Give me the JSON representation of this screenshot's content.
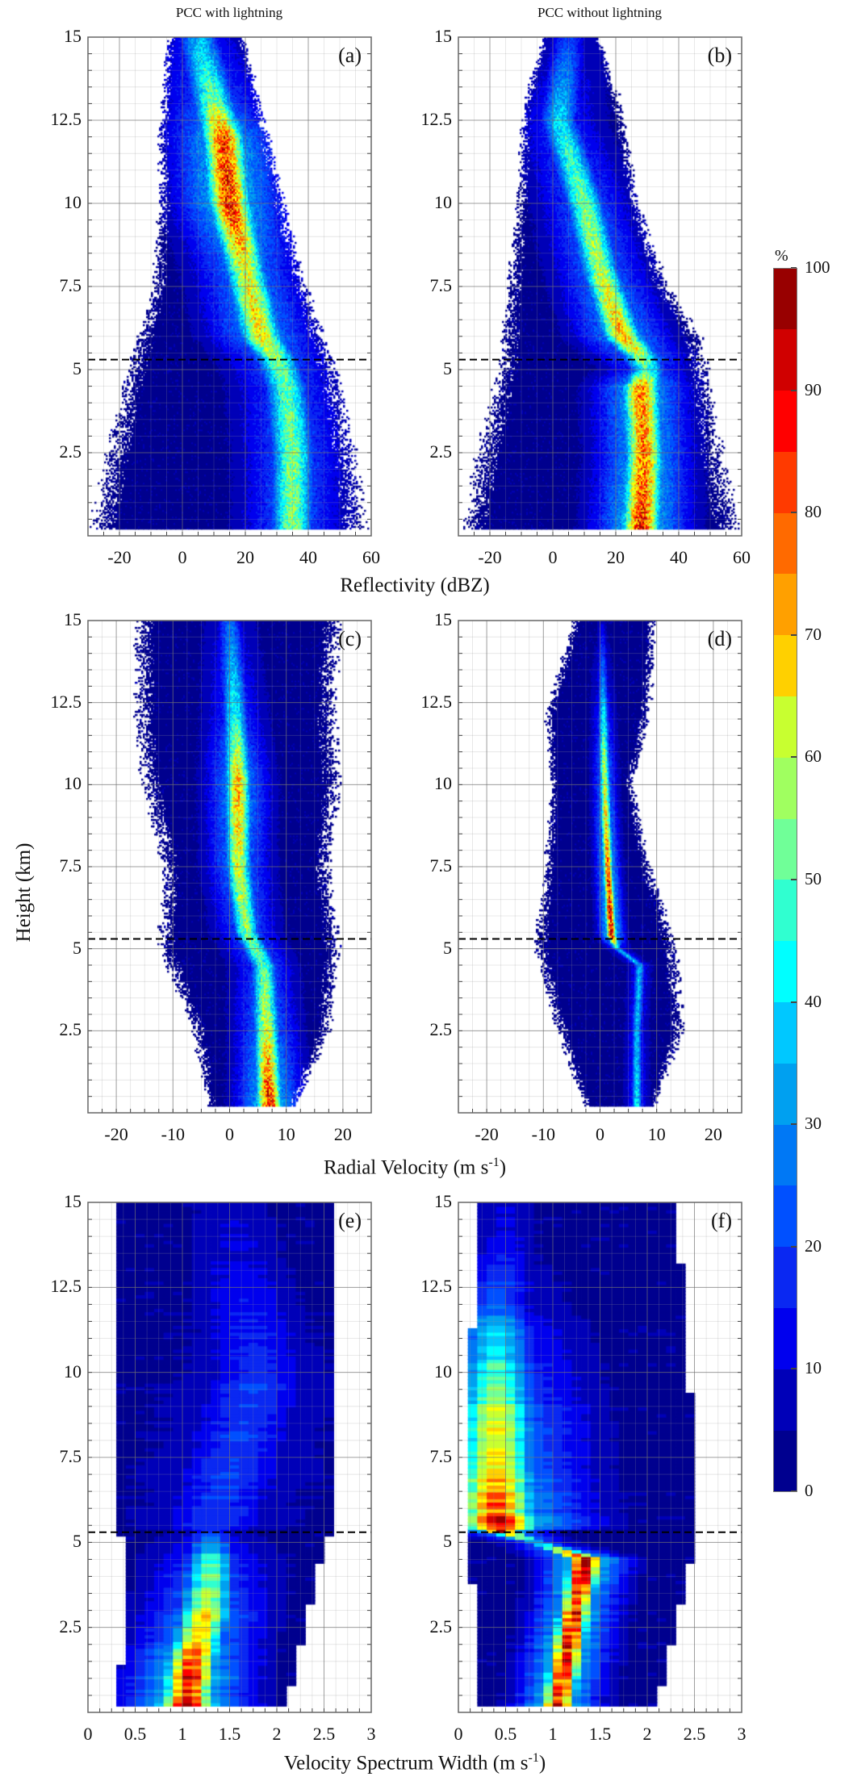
{
  "figure": {
    "column_titles": [
      "PCC with lightning",
      "PCC without lightning"
    ],
    "ylabel": "Height (km)",
    "xlabels": {
      "reflectivity": "Reflectivity (dBZ)",
      "radial_velocity": "Radial Velocity (m s",
      "radial_velocity_sup": "-1",
      "radial_velocity_end": ")",
      "spectrum_width": "Velocity Spectrum Width (m s",
      "spectrum_width_sup": "-1",
      "spectrum_width_end": ")"
    }
  },
  "colorbar": {
    "unit": "%",
    "range": [
      0,
      100
    ],
    "ticks": [
      "0",
      "10",
      "20",
      "30",
      "40",
      "50",
      "60",
      "70",
      "80",
      "90",
      "100"
    ],
    "levels": 20,
    "colors": [
      "#00008f",
      "#0000b8",
      "#0000ee",
      "#0a28f2",
      "#0050ff",
      "#0078f5",
      "#00a0f0",
      "#00c8ff",
      "#00ffff",
      "#30ffd0",
      "#70ff98",
      "#a0ff60",
      "#c8ff30",
      "#ffff00",
      "#ffd000",
      "#ffa000",
      "#ff6a00",
      "#ff3a00",
      "#ff0000",
      "#d00000",
      "#980000"
    ]
  },
  "chart_data": [
    {
      "id": "a",
      "panel_label": "(a)",
      "type": "heatmap",
      "column": "PCC with lightning",
      "variable": "reflectivity",
      "xlim": [
        -30,
        60
      ],
      "ylim": [
        0,
        15
      ],
      "xticks": [
        "-20",
        "0",
        "20",
        "40",
        "60"
      ],
      "xtick_values": [
        -20,
        0,
        20,
        40,
        60
      ],
      "yticks": [
        "2.5",
        "5",
        "7.5",
        "10",
        "12.5",
        "15"
      ],
      "ytick_values": [
        2.5,
        5,
        7.5,
        10,
        12.5,
        15
      ],
      "melting_layer_height_km": 5.3,
      "mode_profile": [
        [
          15,
          5,
          35
        ],
        [
          13,
          10,
          55
        ],
        [
          12,
          13,
          85
        ],
        [
          10,
          15,
          90
        ],
        [
          8,
          20,
          65
        ],
        [
          6,
          25,
          70
        ],
        [
          5.3,
          30,
          55
        ],
        [
          4.5,
          33,
          50
        ],
        [
          2.5,
          35,
          55
        ],
        [
          0.2,
          35,
          55
        ]
      ],
      "mode_sigma": 4.5,
      "envelope": [
        [
          15,
          -5,
          20
        ],
        [
          12,
          -8,
          28
        ],
        [
          10,
          -8,
          33
        ],
        [
          7.5,
          -10,
          40
        ],
        [
          6,
          -15,
          46
        ],
        [
          5,
          -18,
          50
        ],
        [
          2.5,
          -25,
          56
        ],
        [
          0.2,
          -30,
          60
        ]
      ]
    },
    {
      "id": "b",
      "panel_label": "(b)",
      "type": "heatmap",
      "column": "PCC without lightning",
      "variable": "reflectivity",
      "xlim": [
        -30,
        60
      ],
      "ylim": [
        0,
        15
      ],
      "xticks": [
        "-20",
        "0",
        "20",
        "40",
        "60"
      ],
      "xtick_values": [
        -20,
        0,
        20,
        40,
        60
      ],
      "yticks": [
        "2.5",
        "5",
        "7.5",
        "10",
        "12.5",
        "15"
      ],
      "ytick_values": [
        2.5,
        5,
        7.5,
        10,
        12.5,
        15
      ],
      "melting_layer_height_km": 5.3,
      "mode_profile": [
        [
          15,
          5,
          20
        ],
        [
          12.5,
          2,
          40
        ],
        [
          10,
          10,
          55
        ],
        [
          8,
          15,
          60
        ],
        [
          6,
          22,
          75
        ],
        [
          5.4,
          28,
          60
        ],
        [
          5,
          30,
          45
        ],
        [
          4.5,
          28,
          80
        ],
        [
          2.5,
          29,
          80
        ],
        [
          0.2,
          28,
          92
        ]
      ],
      "mode_sigma": 4,
      "envelope": [
        [
          15,
          -3,
          15
        ],
        [
          13,
          -10,
          22
        ],
        [
          10,
          -12,
          28
        ],
        [
          7.5,
          -15,
          37
        ],
        [
          6,
          -17,
          48
        ],
        [
          5,
          -18,
          50
        ],
        [
          2.5,
          -25,
          55
        ],
        [
          0.2,
          -30,
          60
        ]
      ]
    },
    {
      "id": "c",
      "panel_label": "(c)",
      "type": "heatmap",
      "column": "PCC with lightning",
      "variable": "radial_velocity",
      "xlim": [
        -25,
        25
      ],
      "ylim": [
        0,
        15
      ],
      "xticks": [
        "-20",
        "-10",
        "0",
        "10",
        "20"
      ],
      "xtick_values": [
        -20,
        -10,
        0,
        10,
        20
      ],
      "yticks": [
        "2.5",
        "5",
        "7.5",
        "10",
        "12.5",
        "15"
      ],
      "ytick_values": [
        2.5,
        5,
        7.5,
        10,
        12.5,
        15
      ],
      "melting_layer_height_km": 5.3,
      "mode_profile": [
        [
          15,
          0,
          25
        ],
        [
          12,
          1,
          45
        ],
        [
          10,
          1.5,
          75
        ],
        [
          7.5,
          1.5,
          65
        ],
        [
          5.5,
          3,
          55
        ],
        [
          4.5,
          6,
          50
        ],
        [
          2.5,
          6.5,
          65
        ],
        [
          0.2,
          7,
          92
        ]
      ],
      "mode_sigma": 1.5,
      "envelope": [
        [
          15,
          -17,
          20
        ],
        [
          12,
          -17,
          19
        ],
        [
          10,
          -16,
          20
        ],
        [
          7.5,
          -12,
          18
        ],
        [
          5,
          -13,
          20
        ],
        [
          2.5,
          -7,
          18
        ],
        [
          0.2,
          -4,
          12
        ]
      ]
    },
    {
      "id": "d",
      "panel_label": "(d)",
      "type": "heatmap",
      "column": "PCC without lightning",
      "variable": "radial_velocity",
      "xlim": [
        -25,
        25
      ],
      "ylim": [
        0,
        15
      ],
      "xticks": [
        "-20",
        "-10",
        "0",
        "10",
        "20"
      ],
      "xtick_values": [
        -20,
        -10,
        0,
        10,
        20
      ],
      "yticks": [
        "2.5",
        "5",
        "7.5",
        "10",
        "12.5",
        "15"
      ],
      "ytick_values": [
        2.5,
        5,
        7.5,
        10,
        12.5,
        15
      ],
      "melting_layer_height_km": 5.3,
      "mode_profile": [
        [
          15,
          0.3,
          10
        ],
        [
          13,
          0.5,
          30
        ],
        [
          11,
          0.7,
          55
        ],
        [
          9,
          1,
          70
        ],
        [
          7,
          1.5,
          85
        ],
        [
          5.4,
          2,
          95
        ],
        [
          5,
          3,
          35
        ],
        [
          4.5,
          7,
          35
        ],
        [
          2.5,
          6.5,
          35
        ],
        [
          0.2,
          6.5,
          42
        ]
      ],
      "mode_sigma": 0.6,
      "envelope": [
        [
          15,
          -5,
          10
        ],
        [
          12,
          -10,
          9
        ],
        [
          10,
          -9,
          6
        ],
        [
          7.5,
          -10,
          9
        ],
        [
          5,
          -12,
          14
        ],
        [
          2.5,
          -8,
          15
        ],
        [
          0.2,
          -3,
          10
        ]
      ]
    },
    {
      "id": "e",
      "panel_label": "(e)",
      "type": "heatmap",
      "column": "PCC with lightning",
      "variable": "spectrum_width",
      "xlim": [
        0,
        3
      ],
      "ylim": [
        0,
        15
      ],
      "xticks": [
        "0",
        "0.5",
        "1",
        "1.5",
        "2",
        "2.5",
        "3"
      ],
      "xtick_values": [
        0,
        0.5,
        1,
        1.5,
        2,
        2.5,
        3
      ],
      "yticks": [
        "2.5",
        "5",
        "7.5",
        "10",
        "12.5",
        "15"
      ],
      "ytick_values": [
        2.5,
        5,
        7.5,
        10,
        12.5,
        15
      ],
      "melting_layer_height_km": 5.3,
      "mode_profile": [
        [
          15,
          1.5,
          8
        ],
        [
          10,
          1.8,
          18
        ],
        [
          7,
          1.5,
          20
        ],
        [
          5.3,
          1.3,
          18
        ],
        [
          4.5,
          1.3,
          45
        ],
        [
          3,
          1.25,
          65
        ],
        [
          1.5,
          1.1,
          85
        ],
        [
          0.2,
          1.05,
          100
        ]
      ],
      "mode_sigma": 0.18,
      "envelope": [
        [
          15,
          0.3,
          2.6
        ],
        [
          5.2,
          0.3,
          2.6
        ],
        [
          5,
          0.4,
          2.5
        ],
        [
          2.5,
          0.4,
          2.3
        ],
        [
          0.2,
          0.3,
          2.1
        ]
      ]
    },
    {
      "id": "f",
      "panel_label": "(f)",
      "type": "heatmap",
      "column": "PCC without lightning",
      "variable": "spectrum_width",
      "xlim": [
        0,
        3
      ],
      "ylim": [
        0,
        15
      ],
      "xticks": [
        "0",
        "0.5",
        "1",
        "1.5",
        "2",
        "2.5",
        "3"
      ],
      "xtick_values": [
        0,
        0.5,
        1,
        1.5,
        2,
        2.5,
        3
      ],
      "yticks": [
        "2.5",
        "5",
        "7.5",
        "10",
        "12.5",
        "15"
      ],
      "ytick_values": [
        2.5,
        5,
        7.5,
        10,
        12.5,
        15
      ],
      "melting_layer_height_km": 5.3,
      "mode_profile": [
        [
          14,
          0.5,
          10
        ],
        [
          12,
          0.4,
          25
        ],
        [
          10,
          0.4,
          50
        ],
        [
          8,
          0.4,
          70
        ],
        [
          6,
          0.4,
          85
        ],
        [
          5.3,
          0.45,
          100
        ],
        [
          5,
          0.8,
          40
        ],
        [
          4.5,
          1.35,
          95
        ],
        [
          2.5,
          1.2,
          90
        ],
        [
          0.2,
          1.05,
          90
        ]
      ],
      "mode_sigma": 0.12,
      "envelope": [
        [
          15,
          0.2,
          2.3
        ],
        [
          7.5,
          0.1,
          2.5
        ],
        [
          5,
          0.1,
          2.5
        ],
        [
          2.5,
          0.2,
          2.3
        ],
        [
          0.2,
          0.2,
          2.1
        ]
      ]
    }
  ]
}
